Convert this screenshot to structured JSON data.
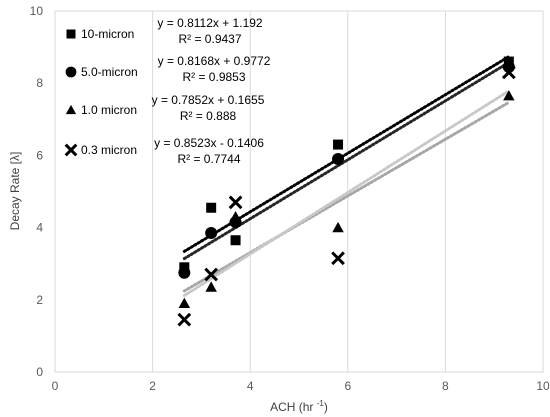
{
  "chart_data": {
    "type": "scatter",
    "xlabel": "ACH (hr ",
    "xlabel_sup": "-1",
    "xlabel_end": ")",
    "ylabel": "Decay Rate [λ]",
    "xlim": [
      0,
      10
    ],
    "ylim": [
      0,
      10
    ],
    "x_ticks": [
      "0",
      "2",
      "4",
      "6",
      "8",
      "10"
    ],
    "y_ticks": [
      "0",
      "2",
      "4",
      "6",
      "8",
      "10"
    ],
    "grid": "vertical",
    "legend_position": "top-left",
    "series": [
      {
        "name": "10-micron",
        "marker": "square",
        "color": "#000000",
        "trend_color": "#000000",
        "equation": "y = 0.8112x + 1.192",
        "r2": "R² = 0.9437",
        "slope": 0.8112,
        "intercept": 1.192,
        "points": [
          [
            2.65,
            2.9
          ],
          [
            3.2,
            4.55
          ],
          [
            3.7,
            3.65
          ],
          [
            5.8,
            6.3
          ],
          [
            9.3,
            8.6
          ]
        ]
      },
      {
        "name": "5.0-micron",
        "marker": "circle",
        "color": "#000000",
        "trend_color": "#262626",
        "equation": "y = 0.8168x + 0.9772",
        "r2": "R² = 0.9853",
        "slope": 0.8168,
        "intercept": 0.9772,
        "points": [
          [
            2.65,
            2.75
          ],
          [
            3.2,
            3.85
          ],
          [
            3.7,
            4.15
          ],
          [
            5.8,
            5.9
          ],
          [
            9.3,
            8.45
          ]
        ]
      },
      {
        "name": "1.0 micron",
        "marker": "triangle",
        "color": "#000000",
        "trend_color": "#a6a6a6",
        "equation": "y = 0.7852x + 0.1655",
        "r2": "R² = 0.888",
        "slope": 0.7852,
        "intercept": 0.1655,
        "points": [
          [
            2.65,
            1.9
          ],
          [
            3.2,
            2.35
          ],
          [
            3.7,
            4.3
          ],
          [
            5.8,
            4.0
          ],
          [
            9.3,
            7.65
          ]
        ]
      },
      {
        "name": "0.3 micron",
        "marker": "x",
        "color": "#000000",
        "trend_color": "#c8c8c8",
        "equation": "y = 0.8523x - 0.1406",
        "r2": "R² = 0.7744",
        "slope": 0.8523,
        "intercept": -0.1406,
        "points": [
          [
            2.65,
            1.45
          ],
          [
            3.2,
            2.7
          ],
          [
            3.7,
            4.7
          ],
          [
            5.8,
            3.15
          ],
          [
            9.3,
            8.3
          ]
        ]
      }
    ]
  }
}
